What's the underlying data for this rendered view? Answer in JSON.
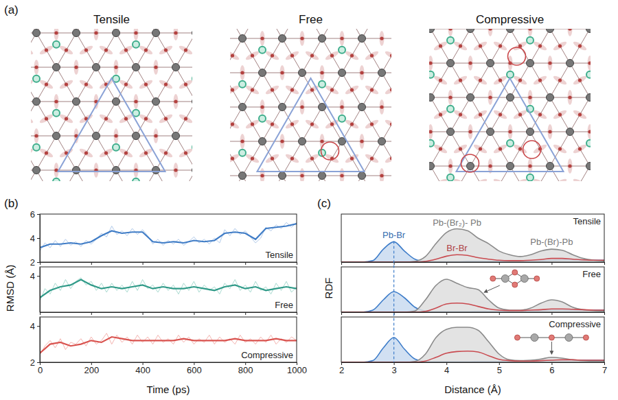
{
  "chart_data": [
    {
      "type": "diagram",
      "panel_label": "(a)",
      "titles": [
        "Tensile",
        "Free",
        "Compressive"
      ]
    },
    {
      "type": "line",
      "panel_label": "(b)",
      "xlabel": "Time (ps)",
      "ylabel": "RMSD (Å)",
      "xlim": [
        0,
        1000
      ],
      "xticks": [
        0,
        200,
        400,
        600,
        800,
        1000
      ],
      "panels": [
        {
          "title": "Tensile",
          "ylim": [
            2,
            6
          ],
          "yticks": [
            2,
            4,
            6
          ],
          "series": [
            {
              "color": "#a7c3e6",
              "x": [
                0,
                20,
                40,
                60,
                80,
                100,
                120,
                140,
                160,
                180,
                200,
                220,
                240,
                260,
                280,
                300,
                320,
                340,
                360,
                380,
                400,
                420,
                440,
                460,
                480,
                500,
                520,
                540,
                560,
                580,
                600,
                620,
                640,
                660,
                680,
                700,
                720,
                740,
                760,
                780,
                800,
                820,
                840,
                860,
                880,
                900,
                920,
                940,
                960,
                980,
                1000
              ],
              "values": [
                2.9,
                3.6,
                3.2,
                3.8,
                3.3,
                3.9,
                3.4,
                3.7,
                3.3,
                3.8,
                3.5,
                3.9,
                4.4,
                4.1,
                5.0,
                4.3,
                4.6,
                4.2,
                4.8,
                4.3,
                4.7,
                4.2,
                3.5,
                3.9,
                3.4,
                3.8,
                3.5,
                3.9,
                3.4,
                3.7,
                4.1,
                3.6,
                3.9,
                3.5,
                4.0,
                3.6,
                4.7,
                4.2,
                4.8,
                4.3,
                4.6,
                4.1,
                3.6,
                4.0,
                4.9,
                4.6,
                5.1,
                4.8,
                5.3,
                4.9,
                5.3
              ]
            },
            {
              "color": "#3f7cc6",
              "x": [
                0,
                40,
                80,
                120,
                160,
                200,
                240,
                280,
                320,
                360,
                400,
                440,
                480,
                520,
                560,
                600,
                640,
                680,
                720,
                760,
                800,
                840,
                880,
                920,
                960,
                1000
              ],
              "values": [
                3.2,
                3.5,
                3.5,
                3.6,
                3.5,
                3.7,
                4.2,
                4.6,
                4.4,
                4.5,
                4.5,
                3.7,
                3.6,
                3.7,
                3.6,
                3.8,
                3.7,
                3.8,
                4.4,
                4.5,
                4.4,
                3.9,
                4.8,
                4.9,
                5.0,
                5.2
              ]
            }
          ]
        },
        {
          "title": "Free",
          "ylim": [
            2,
            4.5
          ],
          "yticks": [
            4
          ],
          "series": [
            {
              "color": "#9fd6cb",
              "x": [
                0,
                20,
                40,
                60,
                80,
                100,
                120,
                140,
                160,
                180,
                200,
                220,
                240,
                260,
                280,
                300,
                320,
                340,
                360,
                380,
                400,
                420,
                440,
                460,
                480,
                500,
                520,
                540,
                560,
                580,
                600,
                620,
                640,
                660,
                680,
                700,
                720,
                740,
                760,
                780,
                800,
                820,
                840,
                860,
                880,
                900,
                920,
                940,
                960,
                980,
                1000
              ],
              "values": [
                2.6,
                3.3,
                3.0,
                3.6,
                3.2,
                3.8,
                3.3,
                3.7,
                3.9,
                3.5,
                3.7,
                3.2,
                3.6,
                3.1,
                3.6,
                3.2,
                3.5,
                3.1,
                3.7,
                3.2,
                3.8,
                3.3,
                3.5,
                3.1,
                3.6,
                3.2,
                3.5,
                3.0,
                3.6,
                3.2,
                3.7,
                3.1,
                3.5,
                3.2,
                3.4,
                3.0,
                3.6,
                3.3,
                3.8,
                3.2,
                3.5,
                3.1,
                3.7,
                3.2,
                3.4,
                3.0,
                3.6,
                3.2,
                3.7,
                3.1,
                3.4
              ]
            },
            {
              "color": "#2f9a88",
              "x": [
                0,
                40,
                80,
                120,
                160,
                200,
                240,
                280,
                320,
                360,
                400,
                440,
                480,
                520,
                560,
                600,
                640,
                680,
                720,
                760,
                800,
                840,
                880,
                920,
                960,
                1000
              ],
              "values": [
                2.8,
                3.2,
                3.4,
                3.5,
                3.8,
                3.5,
                3.3,
                3.4,
                3.3,
                3.4,
                3.5,
                3.3,
                3.4,
                3.3,
                3.3,
                3.4,
                3.3,
                3.2,
                3.4,
                3.5,
                3.3,
                3.4,
                3.2,
                3.3,
                3.4,
                3.3
              ]
            }
          ]
        },
        {
          "title": "Compressive",
          "ylim": [
            2,
            4.5
          ],
          "yticks": [
            2,
            4
          ],
          "series": [
            {
              "color": "#f2aaa6",
              "x": [
                0,
                20,
                40,
                60,
                80,
                100,
                120,
                140,
                160,
                180,
                200,
                220,
                240,
                260,
                280,
                300,
                320,
                340,
                360,
                380,
                400,
                420,
                440,
                460,
                480,
                500,
                520,
                540,
                560,
                580,
                600,
                620,
                640,
                660,
                680,
                700,
                720,
                740,
                760,
                780,
                800,
                820,
                840,
                860,
                880,
                900,
                920,
                940,
                960,
                980,
                1000
              ],
              "values": [
                2.4,
                2.9,
                3.2,
                2.8,
                3.3,
                2.7,
                3.1,
                3.0,
                3.3,
                2.9,
                3.4,
                3.0,
                3.2,
                3.6,
                3.0,
                3.5,
                3.1,
                3.4,
                3.0,
                3.5,
                3.1,
                3.4,
                3.0,
                3.5,
                3.1,
                3.3,
                3.0,
                3.5,
                3.1,
                3.4,
                3.0,
                3.3,
                3.1,
                3.5,
                3.0,
                3.4,
                3.1,
                3.3,
                3.0,
                3.5,
                3.1,
                3.3,
                3.0,
                3.4,
                3.1,
                3.5,
                3.0,
                3.3,
                3.1,
                3.4,
                3.2
              ]
            },
            {
              "color": "#d9534f",
              "x": [
                0,
                40,
                80,
                120,
                160,
                200,
                240,
                280,
                320,
                360,
                400,
                440,
                480,
                520,
                560,
                600,
                640,
                680,
                720,
                760,
                800,
                840,
                880,
                920,
                960,
                1000
              ],
              "values": [
                2.5,
                3.0,
                3.1,
                2.9,
                3.0,
                3.2,
                3.1,
                3.4,
                3.3,
                3.2,
                3.2,
                3.2,
                3.2,
                3.2,
                3.3,
                3.2,
                3.2,
                3.2,
                3.2,
                3.3,
                3.2,
                3.2,
                3.2,
                3.3,
                3.2,
                3.2
              ]
            }
          ]
        }
      ]
    },
    {
      "type": "area",
      "panel_label": "(c)",
      "xlabel": "Distance (Å)",
      "ylabel": "RDF",
      "xlim": [
        2,
        7
      ],
      "xticks": [
        2,
        3,
        4,
        5,
        6,
        7
      ],
      "tick_labels": "x",
      "vline": 3,
      "x": [
        2,
        2.2,
        2.4,
        2.6,
        2.8,
        3,
        3.2,
        3.4,
        3.6,
        3.8,
        4,
        4.2,
        4.4,
        4.6,
        4.8,
        5,
        5.2,
        5.4,
        5.6,
        5.8,
        6,
        6.2,
        6.4,
        6.6,
        6.8,
        7
      ],
      "panels": [
        {
          "title": "Tensile",
          "ylim": [
            0,
            1.3
          ],
          "series": [
            {
              "name": "Pb-Br",
              "color": "#3d7cc9",
              "type": "area",
              "values": [
                0,
                0,
                0,
                0.04,
                0.35,
                0.55,
                0.3,
                0.08,
                0.02,
                0.01,
                0.01,
                0.01,
                0.02,
                0.02,
                0.02,
                0.02,
                0.03,
                0.03,
                0.03,
                0.04,
                0.05,
                0.06,
                0.06,
                0.05,
                0.05,
                0.05
              ]
            },
            {
              "name": "Br-Br",
              "color": "#c94a4f",
              "type": "line",
              "values": [
                0,
                0,
                0,
                0,
                0,
                0,
                0,
                0,
                0.02,
                0.08,
                0.16,
                0.2,
                0.18,
                0.12,
                0.08,
                0.05,
                0.04,
                0.04,
                0.05,
                0.07,
                0.1,
                0.1,
                0.08,
                0.06,
                0.05,
                0.05
              ]
            },
            {
              "name": "Pb-(Br₂)- Pb",
              "color": "#8a8a8a",
              "type": "area",
              "values": [
                0,
                0,
                0,
                0,
                0,
                0,
                0,
                0.02,
                0.15,
                0.5,
                0.8,
                0.9,
                0.85,
                0.65,
                0.5,
                0.3,
                0.2,
                0.15,
                0.2,
                0.3,
                0.35,
                0.32,
                0.2,
                0.1,
                0.05,
                0.03
              ]
            }
          ],
          "annotations": [
            {
              "text": "Pb-(Br)-Pb",
              "x": 6
            }
          ]
        },
        {
          "title": "Free",
          "ylim": [
            0,
            1.1
          ],
          "series": [
            {
              "color": "#3d7cc9",
              "type": "area",
              "values": [
                0,
                0,
                0,
                0.05,
                0.3,
                0.5,
                0.35,
                0.12,
                0.03,
                0.01,
                0.01,
                0.01,
                0.01,
                0.02,
                0.02,
                0.02,
                0.02,
                0.03,
                0.03,
                0.04,
                0.05,
                0.05,
                0.05,
                0.05,
                0.05,
                0.05
              ]
            },
            {
              "color": "#c94a4f",
              "type": "line",
              "values": [
                0,
                0,
                0,
                0,
                0,
                0,
                0,
                0,
                0.02,
                0.1,
                0.2,
                0.22,
                0.2,
                0.14,
                0.08,
                0.05,
                0.04,
                0.04,
                0.05,
                0.06,
                0.08,
                0.08,
                0.07,
                0.06,
                0.05,
                0.05
              ]
            },
            {
              "color": "#8a8a8a",
              "type": "area",
              "values": [
                0,
                0,
                0,
                0,
                0,
                0,
                0,
                0.03,
                0.3,
                0.65,
                0.8,
                0.7,
                0.6,
                0.55,
                0.3,
                0.1,
                0.05,
                0.05,
                0.1,
                0.22,
                0.3,
                0.25,
                0.12,
                0.06,
                0.04,
                0.03
              ]
            }
          ]
        },
        {
          "title": "Compressive",
          "ylim": [
            0,
            1.1
          ],
          "series": [
            {
              "color": "#3d7cc9",
              "type": "area",
              "values": [
                0,
                0,
                0,
                0.04,
                0.35,
                0.6,
                0.32,
                0.08,
                0.02,
                0.01,
                0.01,
                0.01,
                0.01,
                0.02,
                0.02,
                0.02,
                0.02,
                0.03,
                0.03,
                0.04,
                0.05,
                0.05,
                0.05,
                0.05,
                0.05,
                0.05
              ]
            },
            {
              "color": "#c94a4f",
              "type": "line",
              "values": [
                0,
                0,
                0,
                0,
                0,
                0,
                0,
                0,
                0.03,
                0.12,
                0.22,
                0.26,
                0.27,
                0.25,
                0.16,
                0.07,
                0.04,
                0.03,
                0.03,
                0.04,
                0.05,
                0.06,
                0.06,
                0.05,
                0.05,
                0.05
              ]
            },
            {
              "color": "#8a8a8a",
              "type": "area",
              "values": [
                0,
                0,
                0,
                0,
                0,
                0,
                0,
                0.02,
                0.2,
                0.6,
                0.8,
                0.85,
                0.85,
                0.78,
                0.5,
                0.2,
                0.06,
                0.04,
                0.05,
                0.08,
                0.12,
                0.1,
                0.06,
                0.04,
                0.03,
                0.03
              ]
            }
          ]
        }
      ]
    }
  ]
}
